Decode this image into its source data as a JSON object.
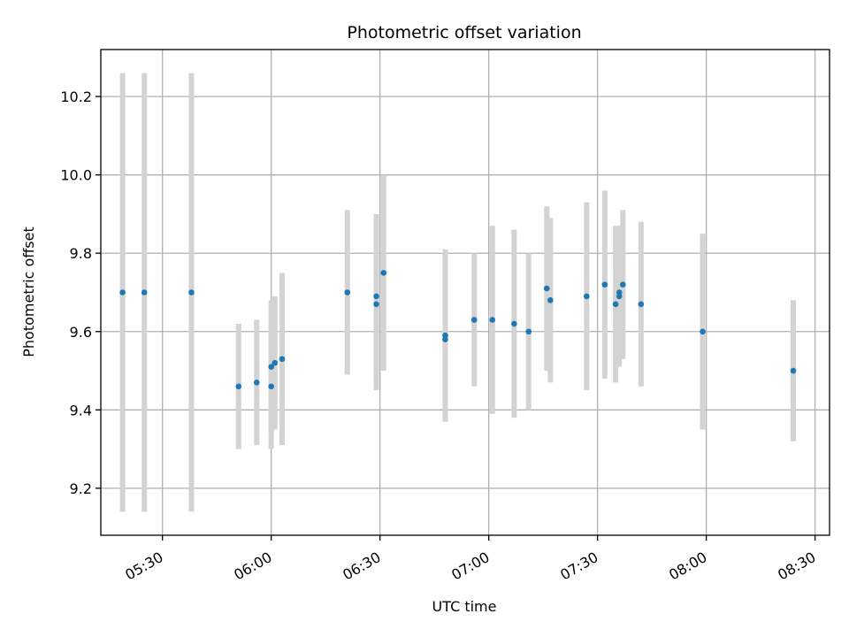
{
  "chart_data": {
    "type": "scatter",
    "title": "Photometric offset variation",
    "xlabel": "UTC time",
    "ylabel": "Photometric offset",
    "grid": true,
    "x_axis_type": "time",
    "xlim": [
      "05:13",
      "08:34"
    ],
    "ylim": [
      9.08,
      10.32
    ],
    "x_ticks": [
      "05:30",
      "06:00",
      "06:30",
      "07:00",
      "07:30",
      "08:00",
      "08:30"
    ],
    "y_ticks": [
      9.2,
      9.4,
      9.6,
      9.8,
      10.0,
      10.2
    ],
    "y_tick_labels": [
      "9.2",
      "9.4",
      "9.6",
      "9.8",
      "10.0",
      "10.2"
    ],
    "colors": {
      "marker": "#1f77b4",
      "error_bar": "#d3d3d3",
      "grid": "#b0b0b0"
    },
    "series": [
      {
        "points": [
          {
            "x": "05:19",
            "y": 9.7,
            "err": 0.56
          },
          {
            "x": "05:25",
            "y": 9.7,
            "err": 0.56
          },
          {
            "x": "05:38",
            "y": 9.7,
            "err": 0.56
          },
          {
            "x": "05:51",
            "y": 9.46,
            "err": 0.16
          },
          {
            "x": "05:56",
            "y": 9.47,
            "err": 0.16
          },
          {
            "x": "06:00",
            "y": 9.46,
            "err": 0.16
          },
          {
            "x": "06:00",
            "y": 9.51,
            "err": 0.17
          },
          {
            "x": "06:01",
            "y": 9.52,
            "err": 0.17
          },
          {
            "x": "06:03",
            "y": 9.53,
            "err": 0.22
          },
          {
            "x": "06:21",
            "y": 9.7,
            "err": 0.21
          },
          {
            "x": "06:29",
            "y": 9.67,
            "err": 0.22
          },
          {
            "x": "06:29",
            "y": 9.69,
            "err": 0.21
          },
          {
            "x": "06:31",
            "y": 9.75,
            "err": 0.25
          },
          {
            "x": "06:48",
            "y": 9.58,
            "err": 0.21
          },
          {
            "x": "06:48",
            "y": 9.59,
            "err": 0.22
          },
          {
            "x": "06:56",
            "y": 9.63,
            "err": 0.17
          },
          {
            "x": "07:01",
            "y": 9.63,
            "err": 0.24
          },
          {
            "x": "07:07",
            "y": 9.62,
            "err": 0.24
          },
          {
            "x": "07:11",
            "y": 9.6,
            "err": 0.2
          },
          {
            "x": "07:16",
            "y": 9.71,
            "err": 0.21
          },
          {
            "x": "07:17",
            "y": 9.68,
            "err": 0.21
          },
          {
            "x": "07:27",
            "y": 9.69,
            "err": 0.24
          },
          {
            "x": "07:32",
            "y": 9.72,
            "err": 0.24
          },
          {
            "x": "07:35",
            "y": 9.67,
            "err": 0.2
          },
          {
            "x": "07:36",
            "y": 9.69,
            "err": 0.18
          },
          {
            "x": "07:36",
            "y": 9.7,
            "err": 0.17
          },
          {
            "x": "07:37",
            "y": 9.72,
            "err": 0.19
          },
          {
            "x": "07:42",
            "y": 9.67,
            "err": 0.21
          },
          {
            "x": "07:59",
            "y": 9.6,
            "err": 0.25
          },
          {
            "x": "08:24",
            "y": 9.5,
            "err": 0.18
          }
        ]
      }
    ]
  }
}
